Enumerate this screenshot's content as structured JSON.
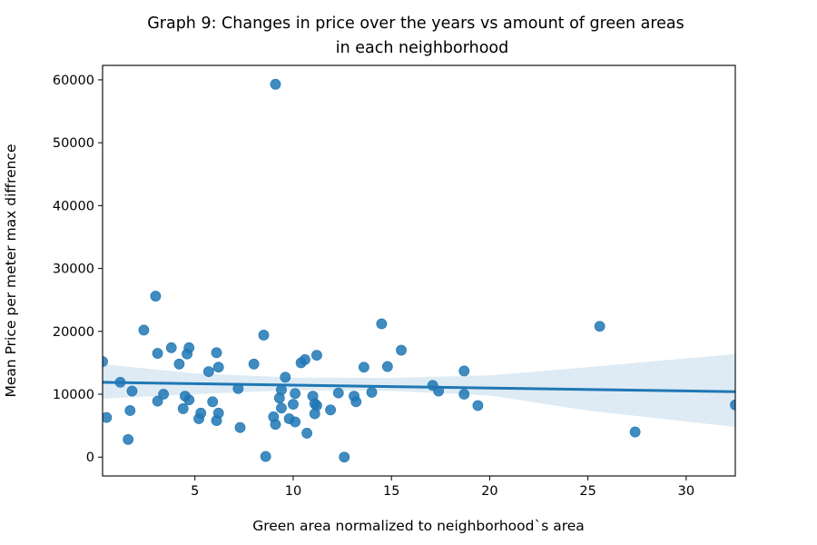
{
  "chart_data": {
    "type": "scatter",
    "title_lines": [
      "Graph 9: Changes in price over the years vs amount of green areas",
      "in each neighborhood"
    ],
    "xlabel": "Green area normalized to neighborhood`s area",
    "ylabel": "Mean Price per meter max diffrence",
    "xlim": [
      0.3,
      32.5
    ],
    "ylim": [
      -3000,
      62300
    ],
    "x_ticks": [
      5,
      10,
      15,
      20,
      25,
      30
    ],
    "y_ticks": [
      0,
      10000,
      20000,
      30000,
      40000,
      50000,
      60000
    ],
    "grid": false,
    "point_color": "#1f77b4",
    "regression": {
      "line": [
        [
          0.3,
          11900
        ],
        [
          32.5,
          10400
        ]
      ],
      "ci_upper": [
        [
          0.3,
          14800
        ],
        [
          5,
          13300
        ],
        [
          10,
          12650
        ],
        [
          15,
          12600
        ],
        [
          20,
          13000
        ],
        [
          25,
          14300
        ],
        [
          32.5,
          16400
        ]
      ],
      "ci_lower": [
        [
          0.3,
          9300
        ],
        [
          5,
          10000
        ],
        [
          10,
          10650
        ],
        [
          15,
          10550
        ],
        [
          20,
          9800
        ],
        [
          25,
          7400
        ],
        [
          32.5,
          4800
        ]
      ],
      "line_color": "#1f77b4",
      "band_color": "#1f77b4"
    },
    "points": [
      [
        0.3,
        15200
      ],
      [
        0.5,
        6300
      ],
      [
        1.2,
        11900
      ],
      [
        1.6,
        2800
      ],
      [
        1.7,
        7400
      ],
      [
        1.8,
        10500
      ],
      [
        2.4,
        20200
      ],
      [
        3.0,
        25600
      ],
      [
        3.1,
        16500
      ],
      [
        3.1,
        8900
      ],
      [
        3.4,
        10000
      ],
      [
        3.8,
        17400
      ],
      [
        4.2,
        14800
      ],
      [
        4.4,
        7700
      ],
      [
        4.5,
        9700
      ],
      [
        4.6,
        16400
      ],
      [
        4.7,
        17400
      ],
      [
        4.7,
        9100
      ],
      [
        5.2,
        6100
      ],
      [
        5.3,
        7000
      ],
      [
        5.7,
        13600
      ],
      [
        5.9,
        8800
      ],
      [
        6.1,
        16600
      ],
      [
        6.1,
        5800
      ],
      [
        6.2,
        14300
      ],
      [
        6.2,
        7000
      ],
      [
        7.2,
        10900
      ],
      [
        7.3,
        4700
      ],
      [
        8.0,
        14800
      ],
      [
        8.5,
        19400
      ],
      [
        8.6,
        100
      ],
      [
        9.0,
        6400
      ],
      [
        9.1,
        5200
      ],
      [
        9.1,
        59300
      ],
      [
        9.3,
        9400
      ],
      [
        9.4,
        10700
      ],
      [
        9.4,
        7800
      ],
      [
        9.6,
        12700
      ],
      [
        9.8,
        6100
      ],
      [
        10.0,
        8400
      ],
      [
        10.1,
        10100
      ],
      [
        10.1,
        5600
      ],
      [
        10.4,
        15000
      ],
      [
        10.6,
        15500
      ],
      [
        10.7,
        3800
      ],
      [
        11.0,
        9700
      ],
      [
        11.1,
        8500
      ],
      [
        11.1,
        6900
      ],
      [
        11.2,
        8200
      ],
      [
        11.2,
        16200
      ],
      [
        11.9,
        7500
      ],
      [
        12.3,
        10200
      ],
      [
        12.6,
        0
      ],
      [
        13.1,
        9700
      ],
      [
        13.2,
        8800
      ],
      [
        13.6,
        14300
      ],
      [
        14.0,
        10300
      ],
      [
        14.5,
        21200
      ],
      [
        14.8,
        14400
      ],
      [
        15.5,
        17000
      ],
      [
        17.1,
        11400
      ],
      [
        17.4,
        10500
      ],
      [
        18.7,
        13700
      ],
      [
        18.7,
        10000
      ],
      [
        19.4,
        8200
      ],
      [
        25.6,
        20800
      ],
      [
        27.4,
        4000
      ],
      [
        32.5,
        8300
      ]
    ]
  }
}
